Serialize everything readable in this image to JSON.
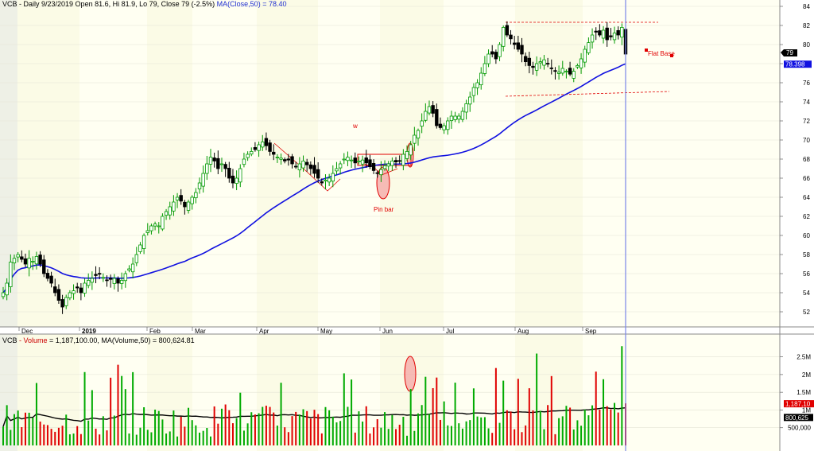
{
  "price_header": {
    "symbol": "VCB",
    "text": " - Daily 9/23/2019 Open 81.6, Hi 81.9, Lo 79, Close 79 (-2.5%)",
    "ma_text": " MA(Close,50) = 78.40"
  },
  "volume_header": {
    "symbol": "VCB",
    "text": " - Volume",
    "value_text": " = 1,187,100.00,",
    "ma_text": " MA(Volume,50) = 800,624.81"
  },
  "colors": {
    "up": "#009900",
    "down": "#000000",
    "ma": "#1010e0",
    "vol_up": "#00aa00",
    "vol_down": "#e00000",
    "band_a": "#fbfbe6",
    "band_b": "#fffff2",
    "band_gray": "#eef0e6",
    "annotation": "#e00000",
    "cursor": "#7a86e8"
  },
  "annotations": {
    "w_label": "w",
    "pin_bar_label": "Pin bar",
    "flat_base_label": "Flat Base"
  },
  "price_axis": {
    "ticks": [
      "84",
      "82",
      "80",
      "78",
      "76",
      "74",
      "72",
      "70",
      "68",
      "66",
      "64",
      "62",
      "60",
      "58",
      "56",
      "54",
      "52"
    ],
    "last_close_label": "79",
    "ma_label": "78.398"
  },
  "volume_axis": {
    "ticks": [
      "2.5M",
      "2M",
      "1.5M",
      "1M",
      "500,000"
    ],
    "last_volume_label": "1,187,10",
    "ma_label": "800,625"
  },
  "time_axis": {
    "labels": [
      "Dec",
      "2019",
      "Feb",
      "Mar",
      "Apr",
      "May",
      "Jun",
      "Jul",
      "Aug",
      "Sep"
    ]
  },
  "chart_data": {
    "type": "candlestick",
    "title": "",
    "x_range": [
      "2018-11-26",
      "2019-09-23"
    ],
    "ylim": [
      50.5,
      85
    ],
    "volume_ylim": [
      0,
      2850000
    ],
    "last_bar": {
      "date": "2019-09-23",
      "open": 81.6,
      "high": 81.9,
      "low": 79,
      "close": 79,
      "change_pct": -2.5,
      "volume": 1187100
    },
    "ma_close_50_last": 78.4,
    "ma_volume_50_last": 800624.81,
    "close_series": [
      54,
      55,
      57.2,
      57.6,
      58,
      57.5,
      57,
      57.6,
      57.3,
      57.8,
      57,
      56,
      55.5,
      55,
      54,
      53.2,
      52.5,
      53.5,
      54,
      54.2,
      54.5,
      54,
      55,
      55.3,
      55.5,
      55.8,
      56,
      55.6,
      55.3,
      55.4,
      55.5,
      55,
      55.3,
      56,
      56.5,
      57,
      58,
      59,
      60,
      60.5,
      61,
      61.2,
      61,
      62,
      62.5,
      63,
      63.5,
      64,
      63.6,
      63,
      63.5,
      64,
      64.5,
      65.5,
      66.5,
      67.5,
      68.2,
      67.8,
      67,
      67.5,
      67,
      66,
      65.5,
      66,
      67,
      68,
      68.5,
      68.8,
      69,
      69.5,
      69.8,
      69.4,
      68.8,
      68.5,
      68.2,
      68.1,
      67.8,
      67.9,
      67.5,
      67.2,
      67.5,
      67.8,
      67.4,
      67,
      66.5,
      66,
      65.5,
      65.8,
      66,
      66.5,
      67,
      67.5,
      68,
      68.2,
      67.9,
      67.6,
      67.8,
      67.9,
      67.6,
      67.2,
      66.8,
      66.5,
      66.9,
      67.3,
      67.5,
      67.8,
      67.7,
      67.8,
      68.5,
      68.8,
      69.5,
      70.5,
      71,
      72,
      73,
      73.5,
      72.8,
      71.5,
      71.3,
      71.5,
      72,
      72.5,
      72.5,
      72.5,
      73,
      73.8,
      74.5,
      75.5,
      76,
      77,
      78,
      79,
      79,
      78.5,
      80,
      81.8,
      81,
      80.6,
      80,
      79.5,
      79,
      78.2,
      77.8,
      77.6,
      78,
      78.2,
      78.4,
      78,
      77.5,
      77.2,
      77.1,
      77.5,
      77.2,
      76.9,
      77.2,
      77.8,
      78.5,
      79.5,
      80.2,
      81,
      81.3,
      81,
      81.5,
      80.5,
      80.8,
      81.2,
      81,
      81.8,
      79
    ]
  }
}
